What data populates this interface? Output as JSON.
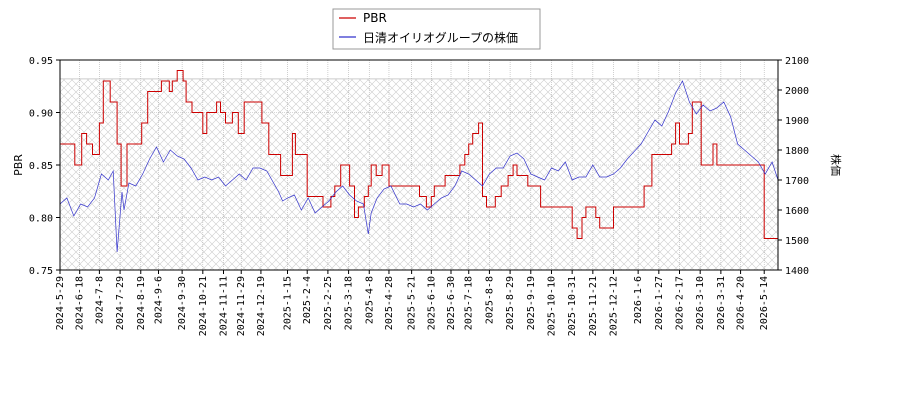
{
  "chart_data": {
    "type": "line",
    "legend": {
      "placement": "top-center",
      "entries": [
        "PBR",
        "日清オイリオグループの株価"
      ]
    },
    "colors": {
      "pbr": "#cc0000",
      "price": "#3333cc",
      "band": "#cccccc",
      "grid": "#b0b0b0"
    },
    "ylabel_left": "PBR",
    "ylabel_right": "株価",
    "ylim_left": [
      0.75,
      0.95
    ],
    "ylim_right": [
      1400,
      2100
    ],
    "yticks_left": [
      "0.75",
      "0.80",
      "0.85",
      "0.90",
      "0.95"
    ],
    "yticks_right": [
      "1400",
      "1500",
      "1600",
      "1700",
      "1800",
      "1900",
      "2000",
      "2100"
    ],
    "x_range": [
      "2024-05-29",
      "2026-05-28"
    ],
    "xticks": [
      "2024-5-29",
      "2024-6-18",
      "2024-7-8",
      "2024-7-29",
      "2024-8-19",
      "2024-9-6",
      "2024-9-30",
      "2024-10-21",
      "2024-11-11",
      "2024-11-29",
      "2024-12-19",
      "2025-1-15",
      "2025-2-4",
      "2025-2-25",
      "2025-3-18",
      "2025-4-8",
      "2025-4-28",
      "2025-5-21",
      "2025-6-10",
      "2025-6-30",
      "2025-7-18",
      "2025-8-8",
      "2025-8-29",
      "2025-9-19",
      "2025-10-10",
      "2025-10-31",
      "2025-11-21",
      "2025-12-12",
      "2026-1-6",
      "2026-1-27",
      "2026-2-17",
      "2026-3-10",
      "2026-3-31",
      "2026-4-20",
      "2026-5-14"
    ],
    "shaded_band_left": [
      0.75,
      0.932
    ],
    "series": [
      {
        "name": "PBR",
        "axis": "left",
        "x": [
          "2024-05-29",
          "2024-06-10",
          "2024-06-13",
          "2024-06-20",
          "2024-06-25",
          "2024-07-01",
          "2024-07-08",
          "2024-07-12",
          "2024-07-19",
          "2024-07-26",
          "2024-07-30",
          "2024-08-05",
          "2024-08-12",
          "2024-08-20",
          "2024-08-26",
          "2024-08-30",
          "2024-09-09",
          "2024-09-17",
          "2024-09-20",
          "2024-09-25",
          "2024-10-01",
          "2024-10-04",
          "2024-10-10",
          "2024-10-15",
          "2024-10-21",
          "2024-10-25",
          "2024-10-28",
          "2024-11-04",
          "2024-11-08",
          "2024-11-13",
          "2024-11-20",
          "2024-11-26",
          "2024-12-02",
          "2024-12-09",
          "2024-12-16",
          "2024-12-20",
          "2024-12-27",
          "2025-01-08",
          "2025-01-14",
          "2025-01-20",
          "2025-01-23",
          "2025-01-30",
          "2025-02-04",
          "2025-02-07",
          "2025-02-14",
          "2025-02-20",
          "2025-02-25",
          "2025-02-28",
          "2025-03-04",
          "2025-03-10",
          "2025-03-14",
          "2025-03-19",
          "2025-03-24",
          "2025-03-28",
          "2025-04-03",
          "2025-04-07",
          "2025-04-10",
          "2025-04-15",
          "2025-04-21",
          "2025-04-24",
          "2025-04-28",
          "2025-05-02",
          "2025-05-08",
          "2025-05-13",
          "2025-05-19",
          "2025-05-23",
          "2025-05-29",
          "2025-06-05",
          "2025-06-10",
          "2025-06-13",
          "2025-06-18",
          "2025-06-24",
          "2025-06-30",
          "2025-07-03",
          "2025-07-09",
          "2025-07-14",
          "2025-07-18",
          "2025-07-22",
          "2025-07-28",
          "2025-08-01",
          "2025-08-05",
          "2025-08-08",
          "2025-08-11",
          "2025-08-14",
          "2025-08-20",
          "2025-08-27",
          "2025-09-01",
          "2025-09-05",
          "2025-09-11",
          "2025-09-16",
          "2025-09-22",
          "2025-09-29",
          "2025-10-03",
          "2025-10-08",
          "2025-10-15",
          "2025-10-24",
          "2025-10-31",
          "2025-11-05",
          "2025-11-10",
          "2025-11-14",
          "2025-11-19",
          "2025-11-24",
          "2025-11-28",
          "2025-12-03",
          "2025-12-08",
          "2025-12-12",
          "2025-12-17",
          "2025-12-23",
          "2026-01-05",
          "2026-01-12",
          "2026-01-20",
          "2026-01-26",
          "2026-02-02",
          "2026-02-09",
          "2026-02-13",
          "2026-02-17",
          "2026-02-20",
          "2026-02-26",
          "2026-03-02",
          "2026-03-06",
          "2026-03-11",
          "2026-03-16",
          "2026-03-23",
          "2026-03-27",
          "2026-04-02",
          "2026-04-08",
          "2026-04-13",
          "2026-04-20",
          "2026-04-27",
          "2026-05-07",
          "2026-05-14",
          "2026-05-21",
          "2026-05-26",
          "2026-05-28"
        ],
        "values": [
          0.87,
          0.87,
          0.85,
          0.88,
          0.87,
          0.86,
          0.89,
          0.93,
          0.91,
          0.87,
          0.83,
          0.87,
          0.87,
          0.89,
          0.92,
          0.92,
          0.93,
          0.92,
          0.93,
          0.94,
          0.93,
          0.91,
          0.9,
          0.9,
          0.88,
          0.9,
          0.9,
          0.91,
          0.9,
          0.89,
          0.9,
          0.88,
          0.91,
          0.91,
          0.91,
          0.89,
          0.86,
          0.84,
          0.84,
          0.88,
          0.86,
          0.86,
          0.82,
          0.82,
          0.82,
          0.81,
          0.81,
          0.82,
          0.83,
          0.85,
          0.85,
          0.83,
          0.8,
          0.81,
          0.82,
          0.83,
          0.85,
          0.84,
          0.85,
          0.85,
          0.83,
          0.83,
          0.83,
          0.83,
          0.83,
          0.83,
          0.82,
          0.81,
          0.82,
          0.83,
          0.83,
          0.84,
          0.84,
          0.84,
          0.85,
          0.86,
          0.87,
          0.88,
          0.89,
          0.82,
          0.81,
          0.81,
          0.81,
          0.82,
          0.83,
          0.84,
          0.85,
          0.84,
          0.84,
          0.83,
          0.83,
          0.81,
          0.81,
          0.81,
          0.81,
          0.81,
          0.79,
          0.78,
          0.8,
          0.81,
          0.81,
          0.8,
          0.79,
          0.79,
          0.79,
          0.81,
          0.81,
          0.81,
          0.81,
          0.83,
          0.86,
          0.86,
          0.86,
          0.87,
          0.89,
          0.87,
          0.87,
          0.88,
          0.91,
          0.91,
          0.85,
          0.85,
          0.87,
          0.85,
          0.85,
          0.85,
          0.85,
          0.85,
          0.85,
          0.85,
          0.78,
          0.78,
          0.78,
          0.76
        ]
      },
      {
        "name": "日清オイリオグループの株価",
        "axis": "right",
        "x": [
          "2024-05-29",
          "2024-06-05",
          "2024-06-12",
          "2024-06-19",
          "2024-06-26",
          "2024-07-03",
          "2024-07-10",
          "2024-07-17",
          "2024-07-22",
          "2024-07-26",
          "2024-07-31",
          "2024-08-02",
          "2024-08-07",
          "2024-08-14",
          "2024-08-21",
          "2024-08-28",
          "2024-09-04",
          "2024-09-11",
          "2024-09-18",
          "2024-09-25",
          "2024-10-02",
          "2024-10-09",
          "2024-10-16",
          "2024-10-23",
          "2024-10-30",
          "2024-11-06",
          "2024-11-13",
          "2024-11-20",
          "2024-11-27",
          "2024-12-04",
          "2024-12-11",
          "2024-12-18",
          "2024-12-25",
          "2025-01-06",
          "2025-01-10",
          "2025-01-15",
          "2025-01-22",
          "2025-01-29",
          "2025-02-05",
          "2025-02-12",
          "2025-02-19",
          "2025-02-26",
          "2025-03-05",
          "2025-03-12",
          "2025-03-19",
          "2025-03-26",
          "2025-04-02",
          "2025-04-07",
          "2025-04-10",
          "2025-04-16",
          "2025-04-23",
          "2025-04-30",
          "2025-05-09",
          "2025-05-16",
          "2025-05-23",
          "2025-05-30",
          "2025-06-06",
          "2025-06-13",
          "2025-06-20",
          "2025-06-27",
          "2025-07-04",
          "2025-07-11",
          "2025-07-18",
          "2025-07-25",
          "2025-08-01",
          "2025-08-08",
          "2025-08-15",
          "2025-08-22",
          "2025-08-29",
          "2025-09-05",
          "2025-09-12",
          "2025-09-19",
          "2025-09-26",
          "2025-10-03",
          "2025-10-10",
          "2025-10-17",
          "2025-10-24",
          "2025-10-31",
          "2025-11-07",
          "2025-11-14",
          "2025-11-21",
          "2025-11-28",
          "2025-12-05",
          "2025-12-12",
          "2025-12-19",
          "2025-12-26",
          "2026-01-09",
          "2026-01-16",
          "2026-01-23",
          "2026-01-30",
          "2026-02-06",
          "2026-02-13",
          "2026-02-20",
          "2026-02-27",
          "2026-03-06",
          "2026-03-13",
          "2026-03-20",
          "2026-03-27",
          "2026-04-03",
          "2026-04-10",
          "2026-04-17",
          "2026-04-24",
          "2026-05-01",
          "2026-05-08",
          "2026-05-15",
          "2026-05-22",
          "2026-05-28"
        ],
        "values": [
          1620,
          1640,
          1580,
          1620,
          1610,
          1640,
          1720,
          1700,
          1730,
          1460,
          1660,
          1600,
          1690,
          1680,
          1720,
          1770,
          1810,
          1760,
          1800,
          1780,
          1770,
          1740,
          1700,
          1710,
          1700,
          1710,
          1680,
          1700,
          1720,
          1700,
          1740,
          1740,
          1730,
          1660,
          1630,
          1640,
          1650,
          1600,
          1640,
          1590,
          1610,
          1630,
          1660,
          1680,
          1650,
          1630,
          1620,
          1520,
          1590,
          1640,
          1670,
          1680,
          1620,
          1620,
          1610,
          1620,
          1600,
          1620,
          1640,
          1650,
          1680,
          1730,
          1720,
          1700,
          1680,
          1720,
          1740,
          1740,
          1780,
          1790,
          1770,
          1720,
          1710,
          1700,
          1740,
          1730,
          1760,
          1700,
          1710,
          1710,
          1750,
          1710,
          1710,
          1720,
          1740,
          1770,
          1820,
          1860,
          1900,
          1880,
          1930,
          1990,
          2030,
          1960,
          1920,
          1950,
          1930,
          1940,
          1960,
          1910,
          1820,
          1800,
          1780,
          1760,
          1720,
          1760,
          1700
        ]
      }
    ]
  }
}
